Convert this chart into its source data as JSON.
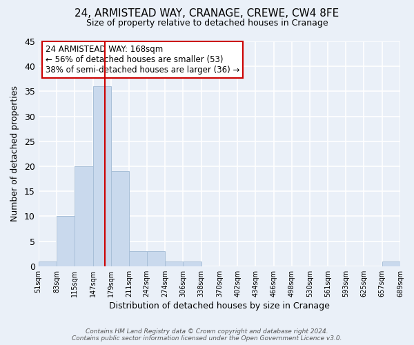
{
  "title1": "24, ARMISTEAD WAY, CRANAGE, CREWE, CW4 8FE",
  "title2": "Size of property relative to detached houses in Cranage",
  "xlabel": "Distribution of detached houses by size in Cranage",
  "ylabel": "Number of detached properties",
  "bar_edges": [
    51,
    83,
    115,
    147,
    179,
    211,
    242,
    274,
    306,
    338,
    370,
    402,
    434,
    466,
    498,
    530,
    561,
    593,
    625,
    657,
    689
  ],
  "bar_heights": [
    1,
    10,
    20,
    36,
    19,
    3,
    3,
    1,
    1,
    0,
    0,
    0,
    0,
    0,
    0,
    0,
    0,
    0,
    0,
    1
  ],
  "bar_color": "#c9d9ed",
  "bar_edge_color": "#a8bfd8",
  "property_line_x": 168,
  "ylim": [
    0,
    45
  ],
  "annotation_text_line1": "24 ARMISTEAD WAY: 168sqm",
  "annotation_text_line2": "← 56% of detached houses are smaller (53)",
  "annotation_text_line3": "38% of semi-detached houses are larger (36) →",
  "footer_text": "Contains HM Land Registry data © Crown copyright and database right 2024.\nContains public sector information licensed under the Open Government Licence v3.0.",
  "background_color": "#eaf0f8",
  "grid_color": "#ffffff",
  "annotation_box_color": "#ffffff",
  "annotation_box_edge_color": "#cc0000",
  "property_line_color": "#cc0000"
}
